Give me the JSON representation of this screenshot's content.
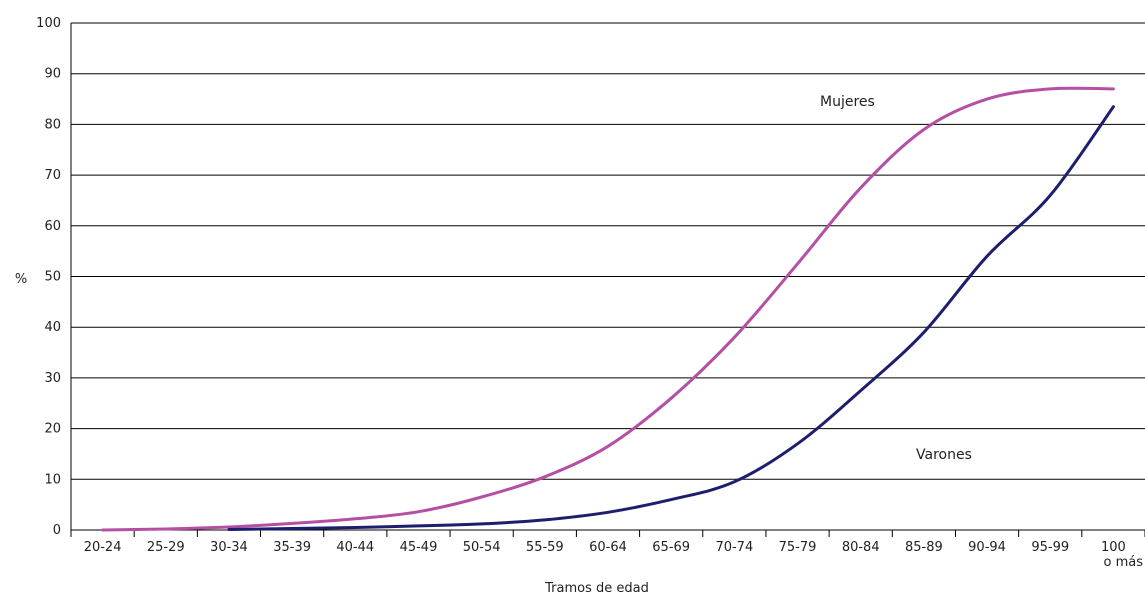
{
  "chart_data": {
    "type": "line",
    "title": "",
    "xlabel": "Tramos de edad",
    "ylabel": "%",
    "ylim": [
      0,
      100
    ],
    "yticks": [
      "0",
      "10",
      "20",
      "30",
      "40",
      "50",
      "60",
      "70",
      "80",
      "90",
      "100"
    ],
    "grid": "horizontal",
    "categories": [
      "20-24",
      "25-29",
      "30-34",
      "35-39",
      "40-44",
      "45-49",
      "50-54",
      "55-59",
      "60-64",
      "65-69",
      "70-74",
      "75-79",
      "80-84",
      "85-89",
      "90-94",
      "95-99",
      "100"
    ],
    "last_category_extra": "o más",
    "series": [
      {
        "name": "Mujeres",
        "color": "#b44fa4",
        "values": [
          0.0,
          0.2,
          0.6,
          1.3,
          2.2,
          3.6,
          6.5,
          10.5,
          16.5,
          26.0,
          38.0,
          52.5,
          67.5,
          79.0,
          85.0,
          87.0,
          87.0
        ]
      },
      {
        "name": "Varones",
        "color": "#1e1e6e",
        "values": [
          null,
          null,
          0.1,
          0.3,
          0.5,
          0.8,
          1.2,
          2.0,
          3.5,
          6.0,
          9.5,
          17.0,
          27.5,
          39.0,
          54.0,
          66.0,
          83.5
        ]
      }
    ]
  }
}
